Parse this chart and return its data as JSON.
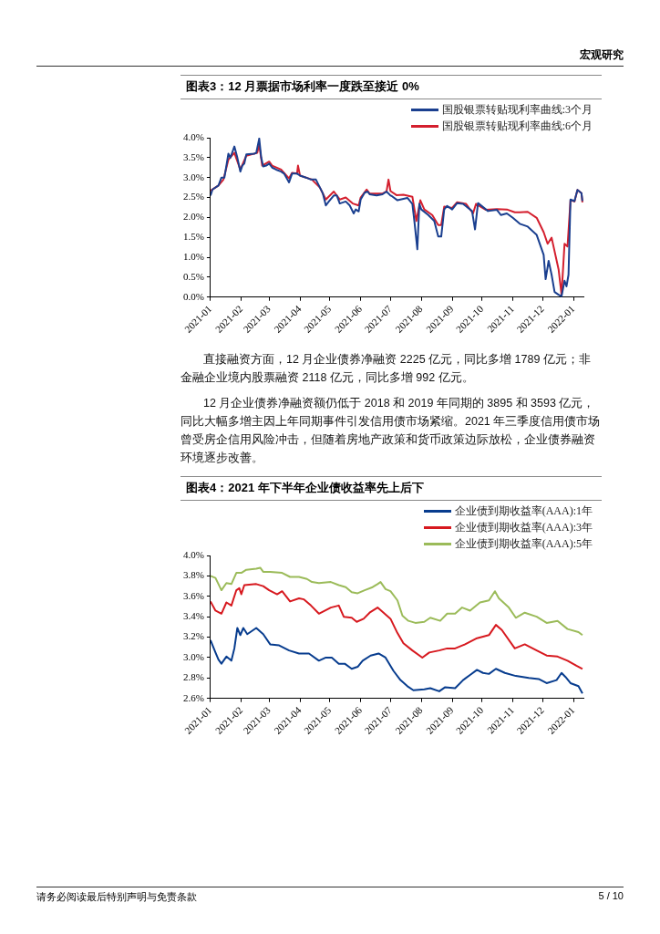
{
  "chart_data": [
    {
      "type": "other",
      "annotations": [
        "宏观研究"
      ]
    },
    {
      "type": "line",
      "title": "图表3：12 月票据市场利率一度跌至接近 0%",
      "legend": "top right",
      "xlim": [
        "2021-01-01",
        "2022-01-11"
      ],
      "xticks": [
        "2021-01",
        "2021-02",
        "2021-03",
        "2021-04",
        "2021-05",
        "2021-06",
        "2021-07",
        "2021-08",
        "2021-09",
        "2021-10",
        "2021-11",
        "2021-12",
        "2022-01"
      ],
      "ylim": [
        0,
        4
      ],
      "yticks": [
        {
          "value": 0,
          "label": "0.0%"
        },
        {
          "value": 0.5,
          "label": "0.5%"
        },
        {
          "value": 1,
          "label": "1.0%"
        },
        {
          "value": 1.5,
          "label": "1.5%"
        },
        {
          "value": 2,
          "label": "2.0%"
        },
        {
          "value": 2.5,
          "label": "2.5%"
        },
        {
          "value": 3,
          "label": "3.0%"
        },
        {
          "value": 3.5,
          "label": "3.5%"
        },
        {
          "value": 4,
          "label": "4.0%"
        }
      ],
      "series": [
        {
          "name": "国股银票转贴现利率曲线:3个月",
          "color": "#1a3f8f",
          "x": [
            "2021-01-01",
            "2021-01-03",
            "2021-01-09",
            "2021-01-12",
            "2021-01-15",
            "2021-01-19",
            "2021-01-21",
            "2021-01-25",
            "2021-01-28",
            "2021-01-31",
            "2021-02-02",
            "2021-02-04",
            "2021-02-06",
            "2021-02-14",
            "2021-02-16",
            "2021-02-19",
            "2021-02-21",
            "2021-02-23",
            "2021-02-26",
            "2021-03-01",
            "2021-03-04",
            "2021-03-08",
            "2021-03-13",
            "2021-03-16",
            "2021-03-21",
            "2021-03-24",
            "2021-03-29",
            "2021-04-01",
            "2021-04-07",
            "2021-04-12",
            "2021-04-17",
            "2021-04-20",
            "2021-04-24",
            "2021-04-27",
            "2021-04-30",
            "2021-05-05",
            "2021-05-08",
            "2021-05-11",
            "2021-05-17",
            "2021-05-21",
            "2021-05-25",
            "2021-05-27",
            "2021-05-30",
            "2021-06-01",
            "2021-06-05",
            "2021-06-08",
            "2021-06-10",
            "2021-06-17",
            "2021-06-23",
            "2021-06-27",
            "2021-07-01",
            "2021-07-02",
            "2021-07-08",
            "2021-07-18",
            "2021-07-23",
            "2021-07-25",
            "2021-07-28",
            "2021-07-30",
            "2021-08-01",
            "2021-08-08",
            "2021-08-14",
            "2021-08-18",
            "2021-08-21",
            "2021-08-24",
            "2021-08-27",
            "2021-09-01",
            "2021-09-06",
            "2021-09-12",
            "2021-09-21",
            "2021-09-24",
            "2021-09-27",
            "2021-10-07",
            "2021-10-16",
            "2021-10-20",
            "2021-10-26",
            "2021-11-01",
            "2021-11-08",
            "2021-11-16",
            "2021-11-25",
            "2021-12-02",
            "2021-12-04",
            "2021-12-07",
            "2021-12-10",
            "2021-12-13",
            "2021-12-17",
            "2021-12-20",
            "2021-12-23",
            "2021-12-25",
            "2021-12-27",
            "2021-12-29",
            "2022-01-02",
            "2022-01-05",
            "2022-01-09",
            "2022-01-10"
          ],
          "values": [
            2.55,
            2.7,
            2.8,
            3.0,
            3.0,
            3.6,
            3.5,
            3.78,
            3.5,
            3.15,
            3.3,
            3.35,
            3.58,
            3.6,
            3.62,
            3.98,
            3.5,
            3.28,
            3.3,
            3.35,
            3.25,
            3.2,
            3.15,
            3.1,
            2.88,
            3.1,
            3.1,
            3.05,
            3.0,
            2.95,
            2.95,
            2.8,
            2.6,
            2.3,
            2.4,
            2.55,
            2.55,
            2.35,
            2.4,
            2.3,
            2.1,
            2.2,
            2.15,
            2.45,
            2.62,
            2.65,
            2.58,
            2.55,
            2.58,
            2.65,
            2.55,
            2.54,
            2.43,
            2.49,
            2.34,
            1.91,
            1.2,
            2.34,
            2.2,
            2.06,
            1.91,
            1.52,
            1.52,
            2.2,
            2.29,
            2.2,
            2.36,
            2.34,
            2.16,
            1.7,
            2.36,
            2.16,
            2.19,
            2.06,
            2.1,
            1.99,
            1.84,
            1.77,
            1.56,
            1.06,
            0.45,
            0.91,
            0.56,
            0.13,
            0.06,
            0.02,
            0.41,
            0.27,
            0.56,
            2.45,
            2.41,
            2.69,
            2.61,
            2.41
          ]
        },
        {
          "name": "国股银票转贴现利率曲线:6个月",
          "color": "#d41f2e",
          "x": [
            "2021-01-01",
            "2021-01-09",
            "2021-01-14",
            "2021-01-19",
            "2021-01-25",
            "2021-01-31",
            "2021-02-06",
            "2021-02-17",
            "2021-02-19",
            "2021-02-22",
            "2021-03-01",
            "2021-03-04",
            "2021-03-13",
            "2021-03-21",
            "2021-03-24",
            "2021-03-29",
            "2021-03-30",
            "2021-04-01",
            "2021-04-13",
            "2021-04-21",
            "2021-04-27",
            "2021-05-05",
            "2021-05-11",
            "2021-05-17",
            "2021-05-24",
            "2021-05-30",
            "2021-06-01",
            "2021-06-07",
            "2021-06-10",
            "2021-06-23",
            "2021-06-27",
            "2021-06-29",
            "2021-07-01",
            "2021-07-07",
            "2021-07-14",
            "2021-07-23",
            "2021-07-27",
            "2021-07-31",
            "2021-08-04",
            "2021-08-12",
            "2021-08-18",
            "2021-08-21",
            "2021-08-24",
            "2021-09-01",
            "2021-09-06",
            "2021-09-15",
            "2021-09-22",
            "2021-09-25",
            "2021-10-05",
            "2021-10-16",
            "2021-10-26",
            "2021-11-03",
            "2021-11-08",
            "2021-11-16",
            "2021-11-25",
            "2021-12-02",
            "2021-12-06",
            "2021-12-10",
            "2021-12-17",
            "2021-12-20",
            "2021-12-23",
            "2021-12-26",
            "2021-12-29",
            "2022-01-02",
            "2022-01-05",
            "2022-01-09",
            "2022-01-10"
          ],
          "values": [
            2.67,
            2.8,
            2.95,
            3.45,
            3.62,
            3.2,
            3.55,
            3.62,
            3.82,
            3.3,
            3.4,
            3.3,
            3.2,
            2.98,
            3.12,
            3.1,
            3.3,
            3.05,
            2.95,
            2.75,
            2.45,
            2.65,
            2.45,
            2.5,
            2.35,
            2.3,
            2.5,
            2.7,
            2.6,
            2.6,
            2.65,
            2.95,
            2.66,
            2.56,
            2.57,
            2.52,
            1.91,
            2.43,
            2.2,
            2.06,
            1.81,
            1.81,
            2.27,
            2.24,
            2.38,
            2.34,
            2.1,
            2.34,
            2.19,
            2.21,
            2.2,
            2.13,
            2.13,
            2.14,
            1.99,
            1.63,
            1.34,
            1.49,
            0.7,
            0.06,
            1.34,
            1.27,
            2.43,
            2.4,
            2.69,
            2.61,
            2.38
          ]
        }
      ]
    },
    {
      "type": "other",
      "annotations": [
        "直接融资方面，12 月企业债券净融资 2225 亿元，同比多增 1789 亿元；非金融企业境内股票融资 2118 亿元，同比多增 992 亿元。",
        "12 月企业债券净融资额仍低于 2018 和 2019 年同期的 3895 和 3593 亿元，同比大幅多增主因上年同期事件引发信用债市场紧缩。2021 年三季度信用债市场曾受房企信用风险冲击，但随着房地产政策和货币政策边际放松，企业债券融资环境逐步改善。"
      ]
    },
    {
      "type": "line",
      "title": "图表4：2021 年下半年企业债收益率先上后下",
      "legend": "top right",
      "xlim": [
        "2021-01-01",
        "2022-01-11"
      ],
      "xticks": [
        "2021-01",
        "2021-02",
        "2021-03",
        "2021-04",
        "2021-05",
        "2021-06",
        "2021-07",
        "2021-08",
        "2021-09",
        "2021-10",
        "2021-11",
        "2021-12",
        "2022-01"
      ],
      "ylim": [
        2.6,
        4
      ],
      "yticks": [
        {
          "value": 2.6,
          "label": "2.6%"
        },
        {
          "value": 2.8,
          "label": "2.8%"
        },
        {
          "value": 3,
          "label": "3.0%"
        },
        {
          "value": 3.2,
          "label": "3.2%"
        },
        {
          "value": 3.4,
          "label": "3.4%"
        },
        {
          "value": 3.6,
          "label": "3.6%"
        },
        {
          "value": 3.8,
          "label": "3.8%"
        },
        {
          "value": 4,
          "label": "4.0%"
        }
      ],
      "series": [
        {
          "name": "企业债到期收益率(AAA):1年",
          "color": "#073c8e",
          "x": [
            "2021-01-01",
            "2021-01-06",
            "2021-01-09",
            "2021-01-12",
            "2021-01-17",
            "2021-01-22",
            "2021-01-25",
            "2021-01-28",
            "2021-01-31",
            "2021-02-03",
            "2021-02-07",
            "2021-02-16",
            "2021-02-23",
            "2021-03-02",
            "2021-03-11",
            "2021-03-21",
            "2021-03-31",
            "2021-04-10",
            "2021-04-20",
            "2021-04-27",
            "2021-05-03",
            "2021-05-10",
            "2021-05-16",
            "2021-05-23",
            "2021-05-29",
            "2021-06-03",
            "2021-06-11",
            "2021-06-19",
            "2021-06-26",
            "2021-07-04",
            "2021-07-11",
            "2021-07-18",
            "2021-07-24",
            "2021-08-04",
            "2021-08-10",
            "2021-08-19",
            "2021-08-25",
            "2021-09-04",
            "2021-09-12",
            "2021-09-19",
            "2021-09-26",
            "2021-10-02",
            "2021-10-08",
            "2021-10-15",
            "2021-10-24",
            "2021-11-04",
            "2021-11-17",
            "2021-11-27",
            "2021-12-05",
            "2021-12-15",
            "2021-12-20",
            "2021-12-24",
            "2021-12-29",
            "2022-01-06",
            "2022-01-10"
          ],
          "values": [
            3.17,
            3.05,
            2.98,
            2.94,
            3.01,
            2.97,
            3.09,
            3.29,
            3.22,
            3.29,
            3.23,
            3.29,
            3.23,
            3.13,
            3.12,
            3.07,
            3.04,
            3.04,
            2.97,
            3.0,
            3.0,
            2.94,
            2.94,
            2.89,
            2.91,
            2.97,
            3.02,
            3.04,
            3.0,
            2.87,
            2.78,
            2.72,
            2.68,
            2.69,
            2.7,
            2.67,
            2.71,
            2.7,
            2.78,
            2.83,
            2.88,
            2.85,
            2.84,
            2.89,
            2.85,
            2.82,
            2.8,
            2.79,
            2.75,
            2.78,
            2.85,
            2.81,
            2.75,
            2.72,
            2.65
          ]
        },
        {
          "name": "企业债到期收益率(AAA):3年",
          "color": "#d7191f",
          "x": [
            "2021-01-01",
            "2021-01-06",
            "2021-01-12",
            "2021-01-17",
            "2021-01-22",
            "2021-01-27",
            "2021-01-30",
            "2021-02-01",
            "2021-02-04",
            "2021-02-16",
            "2021-02-23",
            "2021-03-01",
            "2021-03-09",
            "2021-03-14",
            "2021-03-22",
            "2021-03-31",
            "2021-04-05",
            "2021-04-12",
            "2021-04-20",
            "2021-05-02",
            "2021-05-10",
            "2021-05-15",
            "2021-05-23",
            "2021-05-28",
            "2021-06-04",
            "2021-06-10",
            "2021-06-18",
            "2021-06-24",
            "2021-07-01",
            "2021-07-08",
            "2021-07-14",
            "2021-07-23",
            "2021-08-02",
            "2021-08-09",
            "2021-08-19",
            "2021-08-27",
            "2021-09-04",
            "2021-09-14",
            "2021-09-26",
            "2021-10-08",
            "2021-10-15",
            "2021-10-21",
            "2021-11-03",
            "2021-11-13",
            "2021-11-25",
            "2021-12-05",
            "2021-12-16",
            "2021-12-26",
            "2022-01-04",
            "2022-01-10"
          ],
          "values": [
            3.55,
            3.46,
            3.43,
            3.54,
            3.51,
            3.66,
            3.68,
            3.62,
            3.71,
            3.72,
            3.7,
            3.66,
            3.62,
            3.65,
            3.55,
            3.58,
            3.57,
            3.51,
            3.43,
            3.49,
            3.51,
            3.4,
            3.39,
            3.35,
            3.38,
            3.44,
            3.49,
            3.44,
            3.38,
            3.24,
            3.14,
            3.07,
            3.0,
            3.05,
            3.07,
            3.09,
            3.09,
            3.13,
            3.19,
            3.22,
            3.32,
            3.27,
            3.09,
            3.13,
            3.07,
            3.02,
            3.01,
            2.97,
            2.92,
            2.89
          ]
        },
        {
          "name": "企业债到期收益率(AAA):5年",
          "color": "#9bbb59",
          "x": [
            "2021-01-01",
            "2021-01-06",
            "2021-01-12",
            "2021-01-17",
            "2021-01-22",
            "2021-01-27",
            "2021-02-01",
            "2021-02-06",
            "2021-02-16",
            "2021-02-20",
            "2021-02-23",
            "2021-03-02",
            "2021-03-14",
            "2021-03-22",
            "2021-03-31",
            "2021-04-08",
            "2021-04-13",
            "2021-04-20",
            "2021-05-02",
            "2021-05-10",
            "2021-05-17",
            "2021-05-23",
            "2021-05-29",
            "2021-06-05",
            "2021-06-13",
            "2021-06-18",
            "2021-06-21",
            "2021-06-26",
            "2021-07-01",
            "2021-07-08",
            "2021-07-13",
            "2021-07-19",
            "2021-07-26",
            "2021-08-04",
            "2021-08-10",
            "2021-08-20",
            "2021-08-27",
            "2021-09-04",
            "2021-09-11",
            "2021-09-19",
            "2021-09-29",
            "2021-10-08",
            "2021-10-14",
            "2021-10-18",
            "2021-10-28",
            "2021-11-04",
            "2021-11-13",
            "2021-11-25",
            "2021-12-05",
            "2021-12-16",
            "2021-12-26",
            "2022-01-06",
            "2022-01-10"
          ],
          "values": [
            3.8,
            3.78,
            3.66,
            3.73,
            3.72,
            3.83,
            3.83,
            3.86,
            3.87,
            3.88,
            3.84,
            3.84,
            3.83,
            3.79,
            3.79,
            3.77,
            3.74,
            3.73,
            3.74,
            3.71,
            3.69,
            3.64,
            3.63,
            3.66,
            3.69,
            3.72,
            3.74,
            3.67,
            3.65,
            3.56,
            3.41,
            3.36,
            3.34,
            3.35,
            3.39,
            3.36,
            3.43,
            3.43,
            3.49,
            3.46,
            3.54,
            3.56,
            3.65,
            3.58,
            3.49,
            3.39,
            3.44,
            3.4,
            3.34,
            3.36,
            3.28,
            3.25,
            3.22
          ]
        }
      ]
    },
    {
      "type": "other",
      "annotations": [
        "请务必阅读最后特别声明与免责条款",
        "5 / 10"
      ]
    }
  ]
}
